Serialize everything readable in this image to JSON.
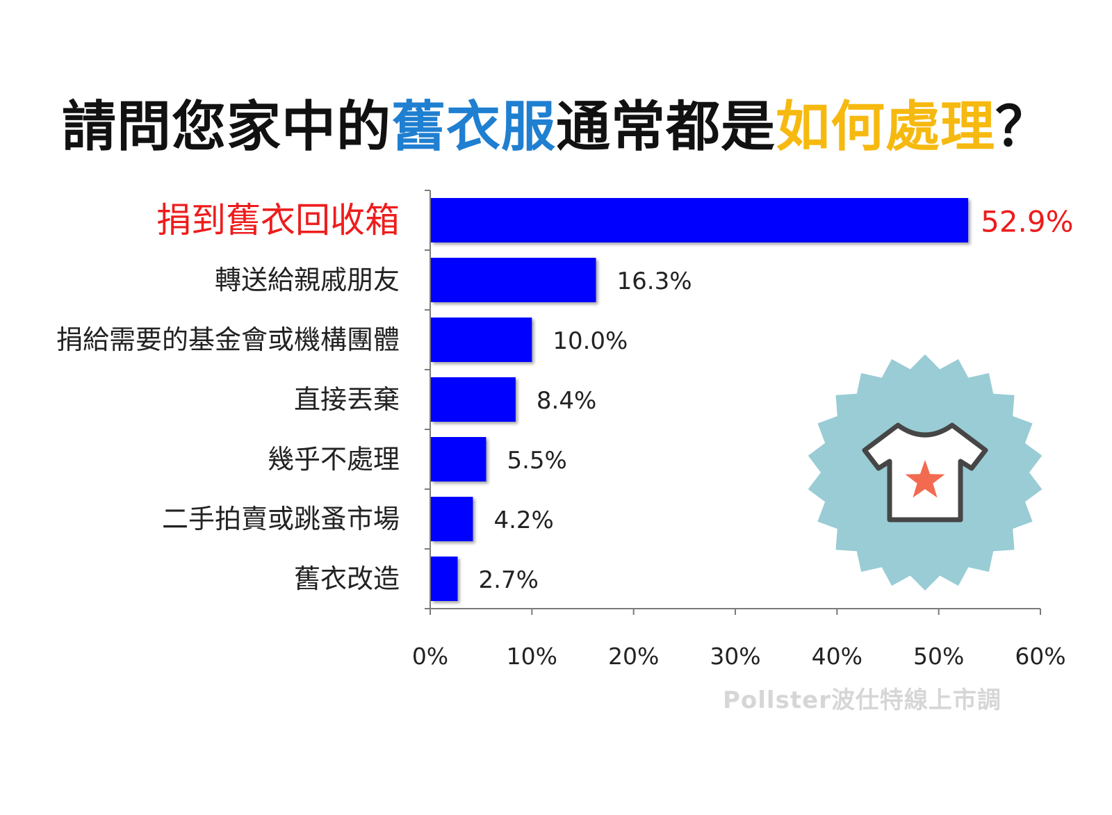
{
  "title": {
    "part1": "請問您家中的",
    "part2": "舊衣服",
    "part3": "通常都是",
    "part4": "如何處理",
    "part5": "？"
  },
  "colors": {
    "bar": "#0000ff",
    "highlight": "#ee1c1c",
    "title_blue": "#1f7fd0",
    "title_yellow": "#f6b90f",
    "badge": "#99ccd5",
    "star": "#f26b50"
  },
  "chart_data": {
    "type": "bar",
    "orientation": "horizontal",
    "categories": [
      "捐到舊衣回收箱",
      "轉送給親戚朋友",
      "捐給需要的基金會或機構團體",
      "直接丟棄",
      "幾乎不處理",
      "二手拍賣或跳蚤市場",
      "舊衣改造"
    ],
    "values": [
      52.9,
      16.3,
      10.0,
      8.4,
      5.5,
      4.2,
      2.7
    ],
    "value_labels": [
      "52.9%",
      "16.3%",
      "10.0%",
      "8.4%",
      "5.5%",
      "4.2%",
      "2.7%"
    ],
    "highlight_index": 0,
    "xlim": [
      0,
      60
    ],
    "xticks": [
      0,
      10,
      20,
      30,
      40,
      50,
      60
    ],
    "xtick_labels": [
      "0%",
      "10%",
      "20%",
      "30%",
      "40%",
      "50%",
      "60%"
    ],
    "grid": false,
    "legend": "none"
  },
  "icon": {
    "name": "tshirt-star-badge-icon"
  },
  "watermark": "Pollster波仕特線上市調"
}
